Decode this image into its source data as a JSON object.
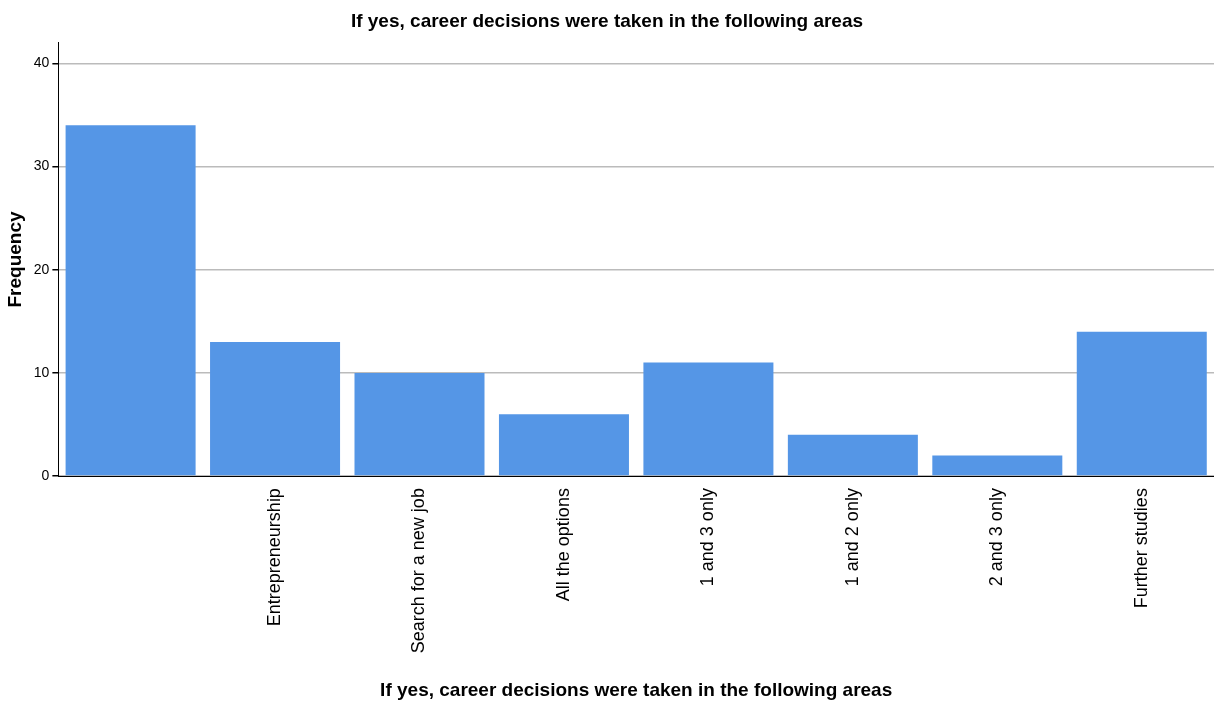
{
  "chart_data": {
    "type": "bar",
    "title": "If yes, career decisions were taken in the following areas",
    "xlabel": "If yes, career decisions were taken in the following areas",
    "ylabel": "Frequency",
    "categories": [
      null,
      "Entrepreneurship",
      "Search for a new job",
      "All the options",
      "1 and 3 only",
      "1 and 2 only",
      "2 and 3 only",
      "Further studies"
    ],
    "values": [
      34,
      13,
      10,
      6,
      11,
      4,
      2,
      14
    ],
    "color": "#5596e6",
    "ylim": [
      0,
      42
    ],
    "yticks": [
      0,
      10,
      20,
      30,
      40
    ],
    "grid": "y",
    "legend": false
  }
}
